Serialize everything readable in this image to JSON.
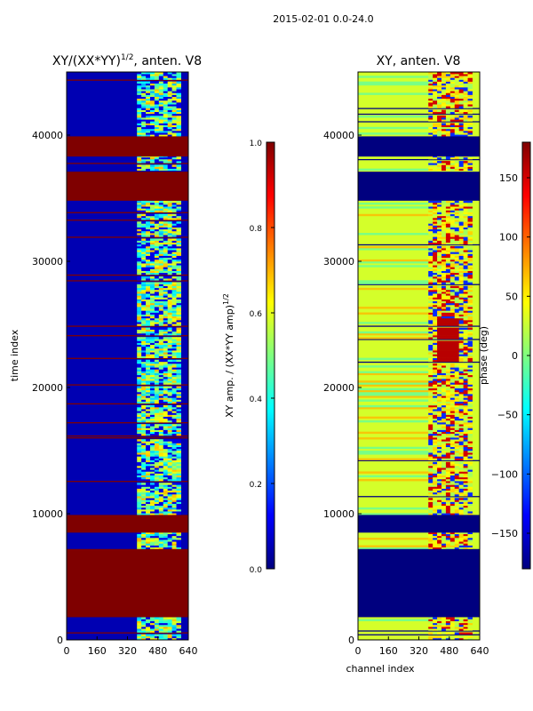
{
  "figure": {
    "suptitle": "2015-02-01 0.0-24.0",
    "shared_xlabel": "channel index"
  },
  "colors": {
    "dark_red": "#800000",
    "red": "#ff0000",
    "orange": "#ff8c00",
    "yellow": "#ffff00",
    "green": "#7fff7f",
    "cyan": "#00ffff",
    "blue": "#0000ff",
    "dark_blue": "#000080",
    "cmap_stops": [
      "#00007f",
      "#0000ff",
      "#007fff",
      "#00ffff",
      "#7fff7f",
      "#ffff00",
      "#ff7f00",
      "#ff0000",
      "#7f0000"
    ]
  },
  "chart_data": [
    {
      "type": "heatmap",
      "title": "XY/(XX*YY)^{1/2}, anten. V8",
      "title_main": "XY/(XX*YY)",
      "title_exp": "1/2",
      "title_suffix": ", anten. V8",
      "xlabel": "",
      "ylabel": "time index",
      "xlim": [
        0,
        640
      ],
      "ylim": [
        0,
        45000
      ],
      "xticks": [
        0,
        160,
        320,
        480,
        640
      ],
      "yticks": [
        0,
        10000,
        20000,
        30000,
        40000
      ],
      "colormap": "jet",
      "colorbar": {
        "label": "XY amp. / (XX*YY amp)^{1/2}",
        "label_main": "XY amp. / (XX*YY amp)",
        "label_exp": "1/2",
        "range": [
          0.0,
          1.0
        ],
        "ticks": [
          "0.0",
          "0.2",
          "0.4",
          "0.6",
          "0.8",
          "1.0"
        ],
        "tick_values": [
          0.0,
          0.2,
          0.4,
          0.6,
          0.8,
          1.0
        ]
      },
      "background_value": 0.05,
      "saturated_time_bands": [
        {
          "from": 1800,
          "to": 7200,
          "value": 1.0
        },
        {
          "from": 8500,
          "to": 9900,
          "value": 1.0
        },
        {
          "from": 34800,
          "to": 37100,
          "value": 1.0
        },
        {
          "from": 38300,
          "to": 39900,
          "value": 1.0
        }
      ],
      "active_channel_band": [
        370,
        600
      ],
      "active_channel_value_range": [
        0.3,
        0.7
      ],
      "notes": "Blue (low amplitude) background over most channels, with saturated dark-red horizontal bands where data are flagged and bright green/yellow structure at channels ~370-600."
    },
    {
      "type": "heatmap",
      "title": "XY, anten. V8",
      "xlabel": "channel index",
      "ylabel": "",
      "xlim": [
        0,
        640
      ],
      "ylim": [
        0,
        45000
      ],
      "xticks": [
        0,
        160,
        320,
        480,
        640
      ],
      "yticks": [
        0,
        10000,
        20000,
        30000,
        40000
      ],
      "colormap": "jet",
      "colorbar": {
        "label": "phase (deg)",
        "range": [
          -180,
          180
        ],
        "ticks": [
          "−150",
          "−100",
          "−50",
          "0",
          "50",
          "100",
          "150"
        ],
        "tick_values": [
          -150,
          -100,
          -50,
          0,
          50,
          100,
          150
        ]
      },
      "background_value": 30,
      "flagged_time_bands": [
        {
          "from": 1800,
          "to": 7200,
          "value": -180
        },
        {
          "from": 8500,
          "to": 9900,
          "value": -180
        },
        {
          "from": 34800,
          "to": 37100,
          "value": -180
        },
        {
          "from": 38300,
          "to": 39900,
          "value": -180
        }
      ],
      "active_channel_band": [
        370,
        600
      ],
      "notes": "Phase mostly near +30 deg (yellow-green) with dark-blue flagged bands at the same times as the amplitude panel and red/blue structure in channels ~370-600."
    }
  ]
}
